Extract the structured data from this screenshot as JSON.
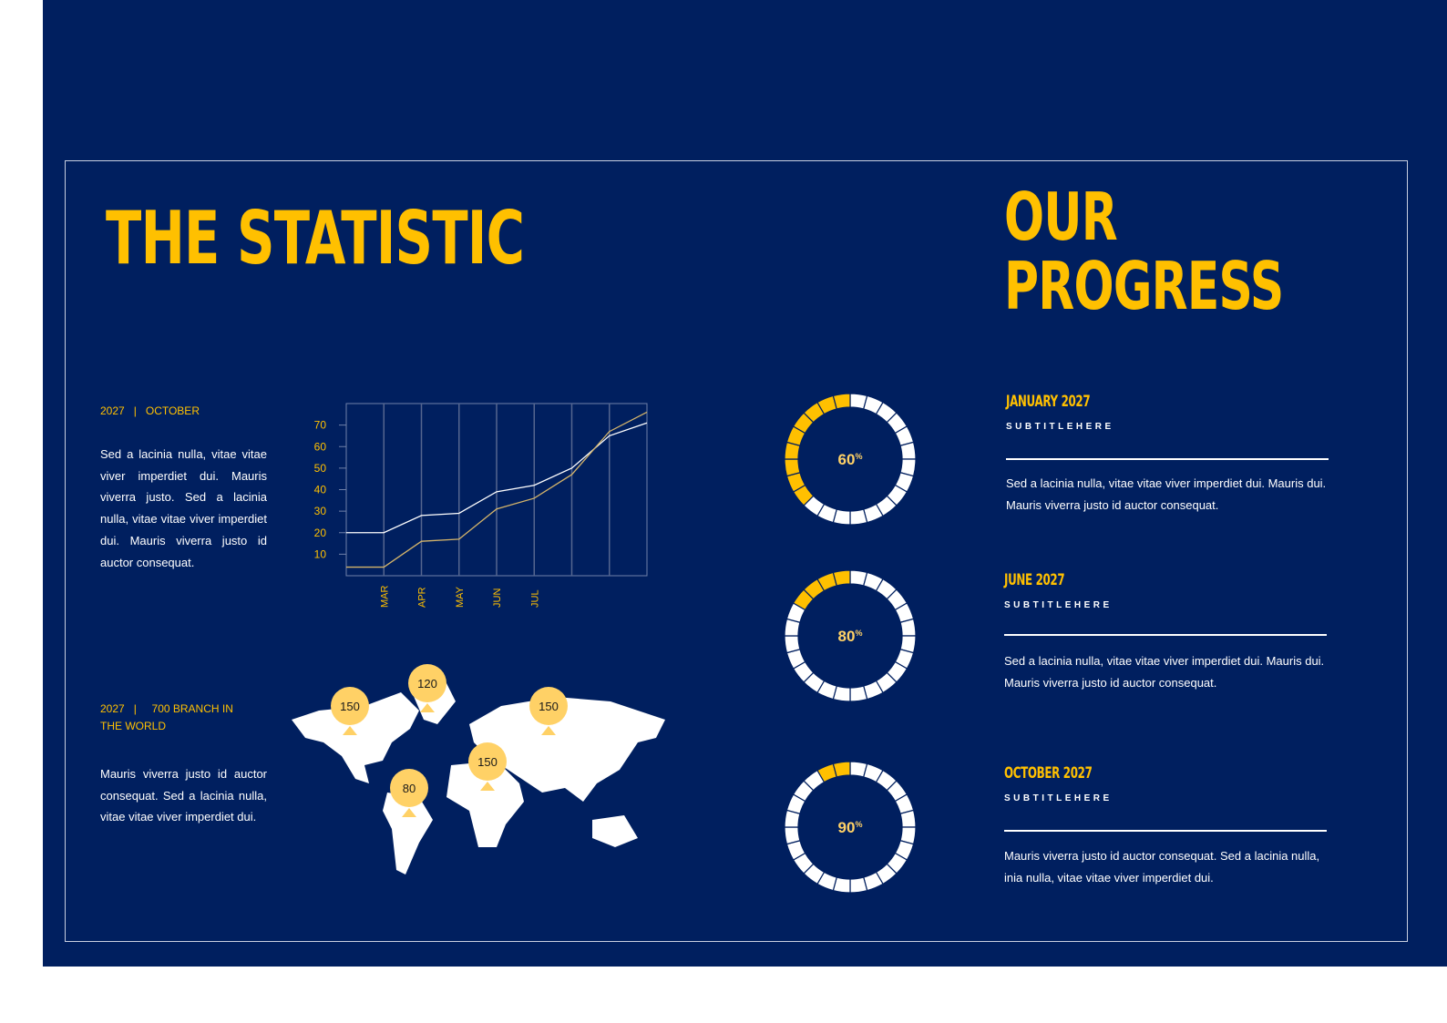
{
  "statistic": {
    "title": "THE STATISTIC",
    "section1": {
      "year": "2027",
      "sep": "|",
      "label": "OCTOBER",
      "text": "Sed a lacinia nulla, vitae vitae viver imperdiet dui. Mauris viverra justo. Sed a lacinia nulla, vitae vitae viver imperdiet dui. Mauris viverra justo id auctor consequat."
    },
    "section2": {
      "year": "2027",
      "sep": "|",
      "label": "700 BRANCH IN THE WORLD",
      "text": "Mauris viverra justo id auctor consequat. Sed a lacinia nulla, vitae vitae viver imperdiet dui."
    }
  },
  "chart_data": {
    "type": "line",
    "x_tick_labels": [
      "MAR",
      "APR",
      "MAY",
      "JUN",
      "JUL"
    ],
    "y_ticks": [
      10,
      20,
      30,
      40,
      50,
      60,
      70
    ],
    "ylim": [
      0,
      80
    ],
    "grid": "vertical",
    "series": [
      {
        "color": "#ffffff",
        "values": [
          20,
          20,
          28,
          29,
          39,
          42,
          50,
          65,
          71
        ]
      },
      {
        "color": "#d4b46a",
        "values": [
          4,
          4,
          16,
          17,
          31,
          36,
          47,
          67,
          76
        ]
      }
    ]
  },
  "map": {
    "markers": [
      {
        "label": "150"
      },
      {
        "label": "120"
      },
      {
        "label": "150"
      },
      {
        "label": "150"
      },
      {
        "label": "80"
      }
    ],
    "marker_color": "#ffd166"
  },
  "progress": {
    "title_line1": "OUR",
    "title_line2": "PROGRESS",
    "items": [
      {
        "percent": "60",
        "unit": "%",
        "segments_filled": 9,
        "date": "JANUARY 2027",
        "subtitle": "SUBTITLEHERE",
        "text": "Sed a lacinia nulla, vitae vitae viver imperdiet dui. Mauris dui. Mauris viverra justo id auctor consequat."
      },
      {
        "percent": "80",
        "unit": "%",
        "segments_filled": 4,
        "date": "JUNE 2027",
        "subtitle": "SUBTITLEHERE",
        "text": "Sed a lacinia nulla, vitae vitae viver imperdiet dui. Mauris dui. Mauris viverra justo id auctor consequat."
      },
      {
        "percent": "90",
        "unit": "%",
        "segments_filled": 2,
        "date": "OCTOBER 2027",
        "subtitle": "SUBTITLEHERE",
        "text": "Mauris viverra justo id auctor consequat.  Sed a lacinia nulla, inia nulla, vitae vitae viver imperdiet dui."
      }
    ]
  },
  "colors": {
    "background": "#001f5f",
    "accent": "#ffc000",
    "white": "#ffffff"
  }
}
